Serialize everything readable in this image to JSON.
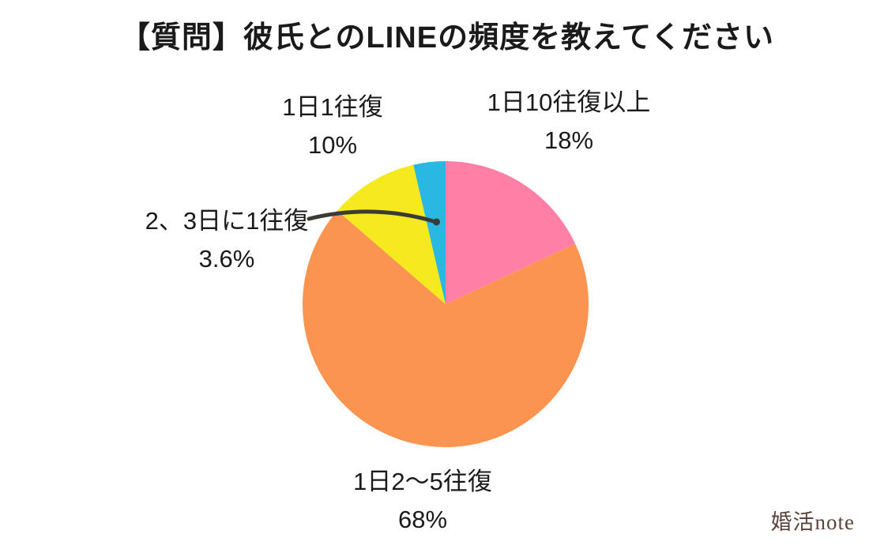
{
  "watermark": "婚活note",
  "chart_data": {
    "type": "pie",
    "title": "【質問】彼氏とのLINEの頻度を教えてください",
    "legend": "none",
    "labels_position": "outside",
    "start_angle_deg": -90,
    "direction": "clockwise",
    "slices": [
      {
        "label": "1日10往復以上",
        "value": 18,
        "percent_label": "18%",
        "color": "#ff7fa7"
      },
      {
        "label": "1日2〜5往復",
        "value": 68,
        "percent_label": "68%",
        "color": "#fa9450"
      },
      {
        "label": "1日1往復",
        "value": 10,
        "percent_label": "10%",
        "color": "#f5ea1e"
      },
      {
        "label": "2、3日に1往復",
        "value": 3.6,
        "percent_label": "3.6%",
        "color": "#29b8e2"
      }
    ],
    "leader_line_color": "#3b3b36"
  }
}
